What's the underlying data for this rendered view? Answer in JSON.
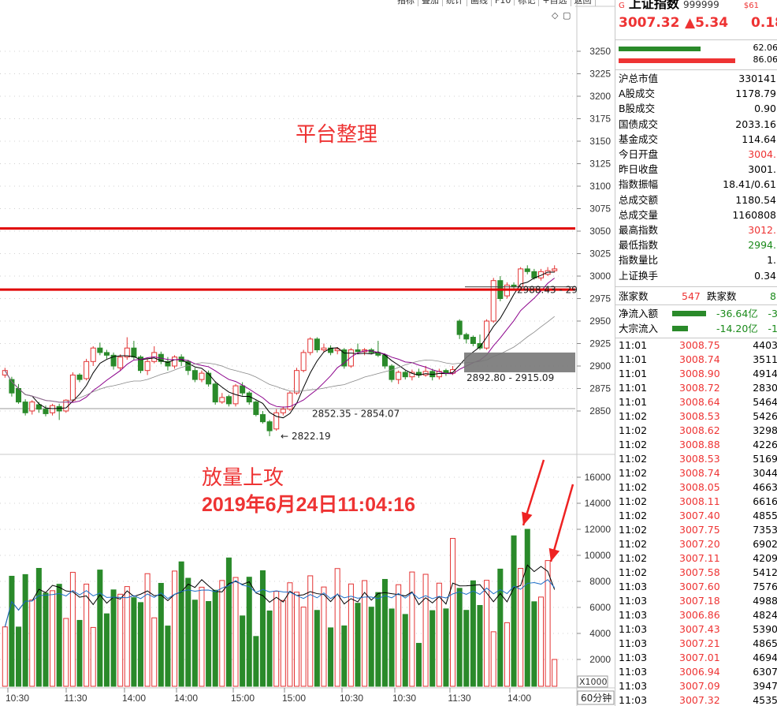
{
  "toolbar": {
    "items": [
      "指标",
      "叠加",
      "统计",
      "画线",
      "F10",
      "标记",
      "+自选",
      "返回"
    ]
  },
  "stock": {
    "marker": "G",
    "name": "上证指数",
    "code": "999999",
    "extra": "$61",
    "price": "3007.32",
    "change": "▲5.34",
    "pct": "0.18"
  },
  "bars": {
    "v1": "62.06",
    "v2": "86.06"
  },
  "stats": [
    {
      "label": "沪总市值",
      "value": "330141",
      "color": "black"
    },
    {
      "label": "A股成交",
      "value": "1178.79",
      "color": "black"
    },
    {
      "label": "B股成交",
      "value": "0.90",
      "color": "black"
    },
    {
      "label": "国债成交",
      "value": "2033.16",
      "color": "black"
    },
    {
      "label": "基金成交",
      "value": "114.64",
      "color": "black"
    },
    {
      "label": "今日开盘",
      "value": "3004.",
      "color": "red"
    },
    {
      "label": "昨日收盘",
      "value": "3001.",
      "color": "black"
    },
    {
      "label": "指数振幅",
      "value": "18.41/0.61",
      "color": "black"
    },
    {
      "label": "总成交额",
      "value": "1180.54",
      "color": "black"
    },
    {
      "label": "总成交量",
      "value": "1160808",
      "color": "black"
    },
    {
      "label": "最高指数",
      "value": "3012.",
      "color": "red"
    },
    {
      "label": "最低指数",
      "value": "2994.",
      "color": "green"
    },
    {
      "label": "指数量比",
      "value": "1.",
      "color": "black"
    },
    {
      "label": "上证换手",
      "value": "0.34",
      "color": "black"
    }
  ],
  "updown": {
    "up_label": "涨家数",
    "up_value": "547",
    "down_label": "跌家数",
    "down_value": "8"
  },
  "flows": [
    {
      "label": "净流入额",
      "value": "-36.64亿",
      "tail": "-3",
      "bar_fraction": 0.85
    },
    {
      "label": "大宗流入",
      "value": "-14.20亿",
      "tail": "-1",
      "bar_fraction": 0.4
    }
  ],
  "ticks": [
    {
      "time": "11:01",
      "price": "3008.75",
      "vol": "4403"
    },
    {
      "time": "11:01",
      "price": "3008.74",
      "vol": "3511"
    },
    {
      "time": "11:01",
      "price": "3008.90",
      "vol": "4914"
    },
    {
      "time": "11:01",
      "price": "3008.72",
      "vol": "2830"
    },
    {
      "time": "11:01",
      "price": "3008.64",
      "vol": "5464"
    },
    {
      "time": "11:02",
      "price": "3008.53",
      "vol": "5426"
    },
    {
      "time": "11:02",
      "price": "3008.62",
      "vol": "3298"
    },
    {
      "time": "11:02",
      "price": "3008.88",
      "vol": "4226"
    },
    {
      "time": "11:02",
      "price": "3008.53",
      "vol": "5169"
    },
    {
      "time": "11:02",
      "price": "3008.74",
      "vol": "3044"
    },
    {
      "time": "11:02",
      "price": "3008.05",
      "vol": "4663"
    },
    {
      "time": "11:02",
      "price": "3008.11",
      "vol": "6616"
    },
    {
      "time": "11:02",
      "price": "3007.40",
      "vol": "4855"
    },
    {
      "time": "11:02",
      "price": "3007.75",
      "vol": "7353"
    },
    {
      "time": "11:02",
      "price": "3007.20",
      "vol": "6902"
    },
    {
      "time": "11:02",
      "price": "3007.11",
      "vol": "4209"
    },
    {
      "time": "11:02",
      "price": "3007.58",
      "vol": "5412"
    },
    {
      "time": "11:03",
      "price": "3007.60",
      "vol": "7576"
    },
    {
      "time": "11:03",
      "price": "3007.18",
      "vol": "4988"
    },
    {
      "time": "11:03",
      "price": "3006.86",
      "vol": "4824"
    },
    {
      "time": "11:03",
      "price": "3007.43",
      "vol": "5390"
    },
    {
      "time": "11:03",
      "price": "3007.21",
      "vol": "4865"
    },
    {
      "time": "11:03",
      "price": "3007.01",
      "vol": "4694"
    },
    {
      "time": "11:03",
      "price": "3006.94",
      "vol": "6307"
    },
    {
      "time": "11:03",
      "price": "3007.09",
      "vol": "3947"
    },
    {
      "time": "11:03",
      "price": "3007.32",
      "vol": "4535"
    }
  ],
  "annotations": {
    "title": "平台整理",
    "vol_title": "放量上攻",
    "datetime": "2019年6月24日11:04:16",
    "low_label": "2822.19",
    "range1": "2852.35 - 2854.07",
    "range2": "2892.80 - 2915.09",
    "range3": "2988.43 - 29"
  },
  "price_axis": [
    "3250",
    "3225",
    "3200",
    "3175",
    "3150",
    "3125",
    "3100",
    "3075",
    "3050",
    "3025",
    "3000",
    "2975",
    "2950",
    "2925",
    "2900",
    "2875",
    "2850"
  ],
  "vol_axis": [
    "16000",
    "14000",
    "12000",
    "10000",
    "8000",
    "6000",
    "4000",
    "2000"
  ],
  "vol_unit": "X1000",
  "time_axis": [
    "10:30",
    "11:30",
    "14:00",
    "14:00",
    "15:00",
    "15:00",
    "10:30",
    "10:30",
    "11:30",
    "14:00"
  ],
  "period": "60分钟",
  "colors": {
    "up": "#e33333",
    "down": "#2a8a2a",
    "level_line": "#e00000",
    "ma": "#000000",
    "ma2": "#8b008b",
    "ma3": "#888888",
    "vol_ma": "#1e6fc8"
  },
  "chart_data": {
    "type": "candlestick",
    "price_range": [
      2810,
      3275
    ],
    "volume_range": [
      0,
      17000
    ],
    "resistance_levels": [
      3053,
      2985
    ],
    "candles": [
      {
        "o": 2890,
        "c": 2895,
        "h": 2898,
        "l": 2887
      },
      {
        "o": 2885,
        "c": 2870,
        "h": 2888,
        "l": 2866
      },
      {
        "o": 2875,
        "c": 2860,
        "h": 2880,
        "l": 2858
      },
      {
        "o": 2860,
        "c": 2848,
        "h": 2863,
        "l": 2845
      },
      {
        "o": 2850,
        "c": 2860,
        "h": 2862,
        "l": 2846
      },
      {
        "o": 2857,
        "c": 2852,
        "h": 2860,
        "l": 2848
      },
      {
        "o": 2852,
        "c": 2847,
        "h": 2856,
        "l": 2844
      },
      {
        "o": 2848,
        "c": 2856,
        "h": 2858,
        "l": 2845
      },
      {
        "o": 2855,
        "c": 2850,
        "h": 2858,
        "l": 2840
      },
      {
        "o": 2850,
        "c": 2862,
        "h": 2863,
        "l": 2848
      },
      {
        "o": 2862,
        "c": 2890,
        "h": 2893,
        "l": 2860
      },
      {
        "o": 2890,
        "c": 2885,
        "h": 2892,
        "l": 2882
      },
      {
        "o": 2886,
        "c": 2905,
        "h": 2908,
        "l": 2884
      },
      {
        "o": 2905,
        "c": 2920,
        "h": 2922,
        "l": 2900
      },
      {
        "o": 2920,
        "c": 2915,
        "h": 2926,
        "l": 2912
      },
      {
        "o": 2915,
        "c": 2912,
        "h": 2918,
        "l": 2908
      },
      {
        "o": 2912,
        "c": 2900,
        "h": 2915,
        "l": 2896
      },
      {
        "o": 2898,
        "c": 2910,
        "h": 2913,
        "l": 2895
      },
      {
        "o": 2910,
        "c": 2920,
        "h": 2932,
        "l": 2907
      },
      {
        "o": 2920,
        "c": 2910,
        "h": 2928,
        "l": 2907
      },
      {
        "o": 2910,
        "c": 2895,
        "h": 2912,
        "l": 2892
      },
      {
        "o": 2895,
        "c": 2905,
        "h": 2908,
        "l": 2890
      },
      {
        "o": 2905,
        "c": 2915,
        "h": 2922,
        "l": 2903
      },
      {
        "o": 2913,
        "c": 2905,
        "h": 2916,
        "l": 2902
      },
      {
        "o": 2905,
        "c": 2900,
        "h": 2910,
        "l": 2895
      },
      {
        "o": 2900,
        "c": 2910,
        "h": 2912,
        "l": 2897
      },
      {
        "o": 2910,
        "c": 2905,
        "h": 2913,
        "l": 2900
      },
      {
        "o": 2905,
        "c": 2895,
        "h": 2907,
        "l": 2890
      },
      {
        "o": 2895,
        "c": 2885,
        "h": 2898,
        "l": 2882
      },
      {
        "o": 2885,
        "c": 2892,
        "h": 2895,
        "l": 2882
      },
      {
        "o": 2892,
        "c": 2880,
        "h": 2895,
        "l": 2877
      },
      {
        "o": 2880,
        "c": 2860,
        "h": 2883,
        "l": 2857
      },
      {
        "o": 2860,
        "c": 2865,
        "h": 2870,
        "l": 2858
      },
      {
        "o": 2866,
        "c": 2858,
        "h": 2868,
        "l": 2855
      },
      {
        "o": 2858,
        "c": 2878,
        "h": 2880,
        "l": 2855
      },
      {
        "o": 2878,
        "c": 2870,
        "h": 2882,
        "l": 2867
      },
      {
        "o": 2870,
        "c": 2860,
        "h": 2872,
        "l": 2857
      },
      {
        "o": 2860,
        "c": 2846,
        "h": 2862,
        "l": 2844
      },
      {
        "o": 2846,
        "c": 2838,
        "h": 2850,
        "l": 2836
      },
      {
        "o": 2838,
        "c": 2828,
        "h": 2840,
        "l": 2822
      },
      {
        "o": 2830,
        "c": 2848,
        "h": 2852,
        "l": 2828
      },
      {
        "o": 2848,
        "c": 2852,
        "h": 2855,
        "l": 2845
      },
      {
        "o": 2852,
        "c": 2870,
        "h": 2872,
        "l": 2850
      },
      {
        "o": 2870,
        "c": 2895,
        "h": 2898,
        "l": 2868
      },
      {
        "o": 2895,
        "c": 2915,
        "h": 2918,
        "l": 2893
      },
      {
        "o": 2915,
        "c": 2930,
        "h": 2932,
        "l": 2912
      },
      {
        "o": 2930,
        "c": 2918,
        "h": 2932,
        "l": 2915
      },
      {
        "o": 2918,
        "c": 2920,
        "h": 2925,
        "l": 2915
      },
      {
        "o": 2920,
        "c": 2915,
        "h": 2923,
        "l": 2912
      },
      {
        "o": 2917,
        "c": 2919,
        "h": 2921,
        "l": 2913
      },
      {
        "o": 2918,
        "c": 2900,
        "h": 2920,
        "l": 2897
      },
      {
        "o": 2900,
        "c": 2918,
        "h": 2920,
        "l": 2898
      },
      {
        "o": 2918,
        "c": 2916,
        "h": 2925,
        "l": 2913
      },
      {
        "o": 2916,
        "c": 2918,
        "h": 2920,
        "l": 2912
      },
      {
        "o": 2918,
        "c": 2915,
        "h": 2920,
        "l": 2913
      },
      {
        "o": 2915,
        "c": 2912,
        "h": 2928,
        "l": 2910
      },
      {
        "o": 2912,
        "c": 2900,
        "h": 2914,
        "l": 2897
      },
      {
        "o": 2900,
        "c": 2885,
        "h": 2902,
        "l": 2882
      },
      {
        "o": 2885,
        "c": 2893,
        "h": 2895,
        "l": 2880
      },
      {
        "o": 2893,
        "c": 2888,
        "h": 2895,
        "l": 2885
      },
      {
        "o": 2888,
        "c": 2893,
        "h": 2896,
        "l": 2884
      },
      {
        "o": 2893,
        "c": 2890,
        "h": 2897,
        "l": 2887
      },
      {
        "o": 2890,
        "c": 2894,
        "h": 2900,
        "l": 2888
      },
      {
        "o": 2894,
        "c": 2888,
        "h": 2897,
        "l": 2884
      },
      {
        "o": 2888,
        "c": 2894,
        "h": 2897,
        "l": 2885
      },
      {
        "o": 2895,
        "c": 2892,
        "h": 2897,
        "l": 2889
      },
      {
        "o": 2892,
        "c": 2896,
        "h": 2900,
        "l": 2890
      },
      {
        "o": 2950,
        "c": 2935,
        "h": 2952,
        "l": 2930
      },
      {
        "o": 2935,
        "c": 2930,
        "h": 2937,
        "l": 2925
      },
      {
        "o": 2932,
        "c": 2925,
        "h": 2934,
        "l": 2922
      },
      {
        "o": 2925,
        "c": 2920,
        "h": 2935,
        "l": 2918
      },
      {
        "o": 2920,
        "c": 2950,
        "h": 2952,
        "l": 2918
      },
      {
        "o": 2950,
        "c": 2995,
        "h": 2998,
        "l": 2948
      },
      {
        "o": 2995,
        "c": 2975,
        "h": 3000,
        "l": 2972
      },
      {
        "o": 2978,
        "c": 2990,
        "h": 2993,
        "l": 2975
      },
      {
        "o": 2990,
        "c": 2988,
        "h": 2993,
        "l": 2985
      },
      {
        "o": 2988,
        "c": 3008,
        "h": 3010,
        "l": 2986
      },
      {
        "o": 3008,
        "c": 3005,
        "h": 3012,
        "l": 3002
      },
      {
        "o": 3005,
        "c": 2998,
        "h": 3008,
        "l": 2996
      },
      {
        "o": 2998,
        "c": 3005,
        "h": 3008,
        "l": 2995
      },
      {
        "o": 3002,
        "c": 3006,
        "h": 3010,
        "l": 3000
      },
      {
        "o": 3006,
        "c": 3008,
        "h": 3012,
        "l": 3004
      }
    ]
  }
}
